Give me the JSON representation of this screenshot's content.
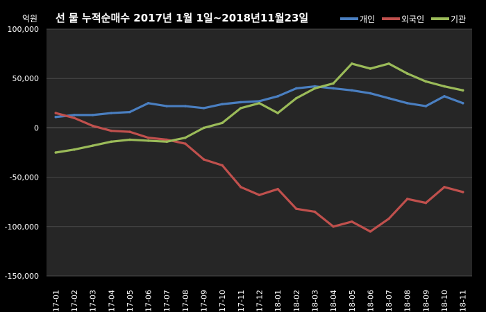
{
  "chart_data": {
    "type": "line",
    "title": "선 물  누적순매수  2017년 1월 1일~2018년11월23일",
    "unit_label": "억원",
    "ylim": [
      -150000,
      100000
    ],
    "y_ticks": [
      100000,
      50000,
      0,
      -50000,
      -100000,
      -150000
    ],
    "y_tick_labels": [
      "100,000",
      "50,000",
      "0",
      "-50,000",
      "-100,000",
      "-150,000"
    ],
    "categories": [
      "17-01",
      "17-02",
      "17-03",
      "17-04",
      "17-05",
      "17-06",
      "17-07",
      "17-08",
      "17-09",
      "17-10",
      "17-11",
      "17-12",
      "18-01",
      "18-02",
      "18-03",
      "18-04",
      "18-05",
      "18-06",
      "18-07",
      "18-08",
      "18-09",
      "18-10",
      "18-11"
    ],
    "grid": true,
    "legend_position": "top-right",
    "series": [
      {
        "name": "개인",
        "color": "#4a7fc1",
        "values": [
          11000,
          13000,
          13000,
          15000,
          16000,
          25000,
          22000,
          22000,
          20000,
          24000,
          26000,
          27000,
          32000,
          40000,
          42000,
          40000,
          38000,
          35000,
          30000,
          25000,
          22000,
          32000,
          25000
        ]
      },
      {
        "name": "외국인",
        "color": "#c0504d",
        "values": [
          15000,
          10000,
          2000,
          -3000,
          -4000,
          -10000,
          -12000,
          -16000,
          -32000,
          -38000,
          -60000,
          -68000,
          -62000,
          -82000,
          -85000,
          -100000,
          -95000,
          -105000,
          -92000,
          -72000,
          -76000,
          -60000,
          -65000
        ]
      },
      {
        "name": "기관",
        "color": "#9bbb59",
        "values": [
          -25000,
          -22000,
          -18000,
          -14000,
          -12000,
          -13000,
          -14000,
          -10000,
          0,
          5000,
          20000,
          25000,
          15000,
          30000,
          40000,
          45000,
          65000,
          60000,
          65000,
          55000,
          47000,
          42000,
          38000
        ]
      }
    ]
  }
}
